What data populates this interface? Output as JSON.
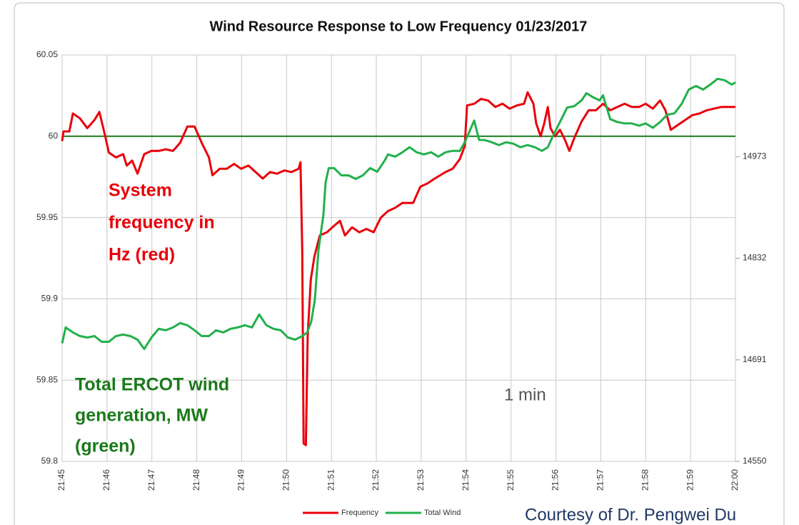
{
  "chart_data": {
    "type": "line",
    "title": "Wind Resource Response to Low Frequency 01/23/2017",
    "xlim": [
      1305,
      1320
    ],
    "xticks": [
      {
        "value": 1305,
        "label": "21:45"
      },
      {
        "value": 1306,
        "label": "21:46"
      },
      {
        "value": 1307,
        "label": "21:47"
      },
      {
        "value": 1308,
        "label": "21:48"
      },
      {
        "value": 1309,
        "label": "21:49"
      },
      {
        "value": 1310,
        "label": "21:50"
      },
      {
        "value": 1311,
        "label": "21:51"
      },
      {
        "value": 1312,
        "label": "21:52"
      },
      {
        "value": 1313,
        "label": "21:53"
      },
      {
        "value": 1314,
        "label": "21:54"
      },
      {
        "value": 1315,
        "label": "21:55"
      },
      {
        "value": 1316,
        "label": "21:56"
      },
      {
        "value": 1317,
        "label": "21:57"
      },
      {
        "value": 1318,
        "label": "21:58"
      },
      {
        "value": 1319,
        "label": "21:59"
      },
      {
        "value": 1320,
        "label": "22:00"
      }
    ],
    "ylim": [
      59.8,
      60.05
    ],
    "yticks": [
      59.8,
      59.85,
      59.9,
      59.95,
      60,
      60.05
    ],
    "y2lim": [
      14550,
      15114
    ],
    "y2ticks": [
      14550,
      14691,
      14832,
      14973
    ],
    "grid": true,
    "reference_line": {
      "value": 60,
      "color": "#1a7a1a"
    },
    "series": [
      {
        "name": "Frequency",
        "color": "#e8000b",
        "axis": "y",
        "x": [
          1305,
          1305.03,
          1305.16,
          1305.24,
          1305.4,
          1305.56,
          1305.72,
          1305.83,
          1305.96,
          1306.04,
          1306.2,
          1306.36,
          1306.44,
          1306.56,
          1306.68,
          1306.83,
          1306.99,
          1307.15,
          1307.31,
          1307.47,
          1307.63,
          1307.79,
          1307.95,
          1308.11,
          1308.27,
          1308.35,
          1308.51,
          1308.67,
          1308.83,
          1308.99,
          1309.15,
          1309.31,
          1309.47,
          1309.63,
          1309.79,
          1309.95,
          1310.11,
          1310.27,
          1310.31,
          1310.35,
          1310.38,
          1310.43,
          1310.47,
          1310.54,
          1310.62,
          1310.74,
          1310.9,
          1311.06,
          1311.19,
          1311.3,
          1311.46,
          1311.62,
          1311.78,
          1311.94,
          1312.1,
          1312.26,
          1312.42,
          1312.58,
          1312.82,
          1312.98,
          1313.14,
          1313.3,
          1313.54,
          1313.7,
          1313.86,
          1313.97,
          1314.02,
          1314.18,
          1314.33,
          1314.49,
          1314.65,
          1314.81,
          1314.97,
          1315.13,
          1315.29,
          1315.37,
          1315.5,
          1315.56,
          1315.66,
          1315.74,
          1315.82,
          1315.88,
          1315.98,
          1316.09,
          1316.2,
          1316.3,
          1316.41,
          1316.57,
          1316.73,
          1316.89,
          1317.05,
          1317.21,
          1317.37,
          1317.53,
          1317.69,
          1317.85,
          1318,
          1318.16,
          1318.32,
          1318.44,
          1318.56,
          1318.72,
          1318.88,
          1319.04,
          1319.2,
          1319.36,
          1319.52,
          1319.68,
          1320
        ],
        "values": [
          59.997,
          60.003,
          60.003,
          60.014,
          60.011,
          60.005,
          60.01,
          60.015,
          60.0,
          59.99,
          59.987,
          59.989,
          59.982,
          59.985,
          59.977,
          59.989,
          59.991,
          59.991,
          59.992,
          59.991,
          59.996,
          60.006,
          60.006,
          59.996,
          59.987,
          59.976,
          59.98,
          59.98,
          59.983,
          59.98,
          59.982,
          59.978,
          59.974,
          59.978,
          59.977,
          59.979,
          59.978,
          59.98,
          59.984,
          59.93,
          59.811,
          59.81,
          59.877,
          59.912,
          59.926,
          59.939,
          59.941,
          59.945,
          59.948,
          59.939,
          59.944,
          59.941,
          59.943,
          59.941,
          59.95,
          59.954,
          59.956,
          59.959,
          59.959,
          59.969,
          59.971,
          59.974,
          59.978,
          59.98,
          59.986,
          59.994,
          60.019,
          60.02,
          60.023,
          60.022,
          60.018,
          60.02,
          60.017,
          60.019,
          60.02,
          60.027,
          60.02,
          60.008,
          60.0,
          60.008,
          60.018,
          60.005,
          60.0,
          60.004,
          59.998,
          59.991,
          59.999,
          60.009,
          60.016,
          60.016,
          60.02,
          60.016,
          60.018,
          60.02,
          60.018,
          60.018,
          60.02,
          60.017,
          60.022,
          60.016,
          60.004,
          60.007,
          60.01,
          60.013,
          60.014,
          60.016,
          60.017,
          60.018,
          60.018
        ]
      },
      {
        "name": "Total Wind",
        "color": "#22b04b",
        "axis": "y2",
        "x": [
          1305,
          1305.08,
          1305.24,
          1305.4,
          1305.56,
          1305.72,
          1305.88,
          1306.04,
          1306.2,
          1306.36,
          1306.52,
          1306.68,
          1306.83,
          1306.99,
          1307.15,
          1307.31,
          1307.47,
          1307.63,
          1307.79,
          1307.95,
          1308.11,
          1308.27,
          1308.43,
          1308.59,
          1308.75,
          1308.91,
          1309.07,
          1309.23,
          1309.39,
          1309.55,
          1309.71,
          1309.87,
          1310.03,
          1310.19,
          1310.35,
          1310.46,
          1310.55,
          1310.63,
          1310.71,
          1310.82,
          1310.87,
          1310.94,
          1311.06,
          1311.22,
          1311.38,
          1311.54,
          1311.7,
          1311.86,
          1312.02,
          1312.18,
          1312.26,
          1312.42,
          1312.58,
          1312.74,
          1312.9,
          1313.06,
          1313.22,
          1313.38,
          1313.54,
          1313.7,
          1313.86,
          1313.97,
          1314.06,
          1314.18,
          1314.29,
          1314.41,
          1314.57,
          1314.73,
          1314.89,
          1315.05,
          1315.21,
          1315.37,
          1315.53,
          1315.69,
          1315.82,
          1315.93,
          1316.09,
          1316.25,
          1316.41,
          1316.57,
          1316.68,
          1316.81,
          1316.97,
          1317.05,
          1317.21,
          1317.37,
          1317.53,
          1317.69,
          1317.85,
          1318,
          1318.16,
          1318.32,
          1318.48,
          1318.64,
          1318.8,
          1318.96,
          1319.12,
          1319.28,
          1319.44,
          1319.6,
          1319.76,
          1319.92,
          1320
        ],
        "values": [
          14714,
          14736,
          14729,
          14724,
          14722,
          14724,
          14716,
          14716,
          14724,
          14726,
          14724,
          14719,
          14706,
          14722,
          14734,
          14732,
          14736,
          14742,
          14739,
          14732,
          14724,
          14724,
          14732,
          14729,
          14734,
          14736,
          14739,
          14736,
          14754,
          14739,
          14734,
          14732,
          14722,
          14719,
          14724,
          14729,
          14744,
          14774,
          14843,
          14892,
          14937,
          14957,
          14957,
          14947,
          14947,
          14942,
          14947,
          14957,
          14952,
          14967,
          14976,
          14973,
          14979,
          14986,
          14979,
          14976,
          14979,
          14973,
          14979,
          14981,
          14981,
          14993,
          15006,
          15023,
          14996,
          14996,
          14993,
          14989,
          14993,
          14991,
          14986,
          14989,
          14986,
          14981,
          14986,
          15001,
          15021,
          15041,
          15043,
          15051,
          15061,
          15056,
          15051,
          15058,
          15025,
          15021,
          15019,
          15019,
          15016,
          15019,
          15013,
          15021,
          15031,
          15033,
          15046,
          15066,
          15071,
          15066,
          15073,
          15081,
          15079,
          15073,
          15076
        ]
      }
    ],
    "annotations": [
      {
        "lines": [
          "System",
          "frequency in",
          "Hz (red)"
        ],
        "color": "#e8000b"
      },
      {
        "lines": [
          "Total ERCOT wind",
          "generation, MW",
          "(green)"
        ],
        "color": "#1a7a1a"
      },
      {
        "lines": [
          "1 min"
        ],
        "color": "#555555"
      },
      {
        "lines": [
          "Courtesy of Dr. Pengwei Du"
        ],
        "color": "#1f3864"
      }
    ]
  }
}
